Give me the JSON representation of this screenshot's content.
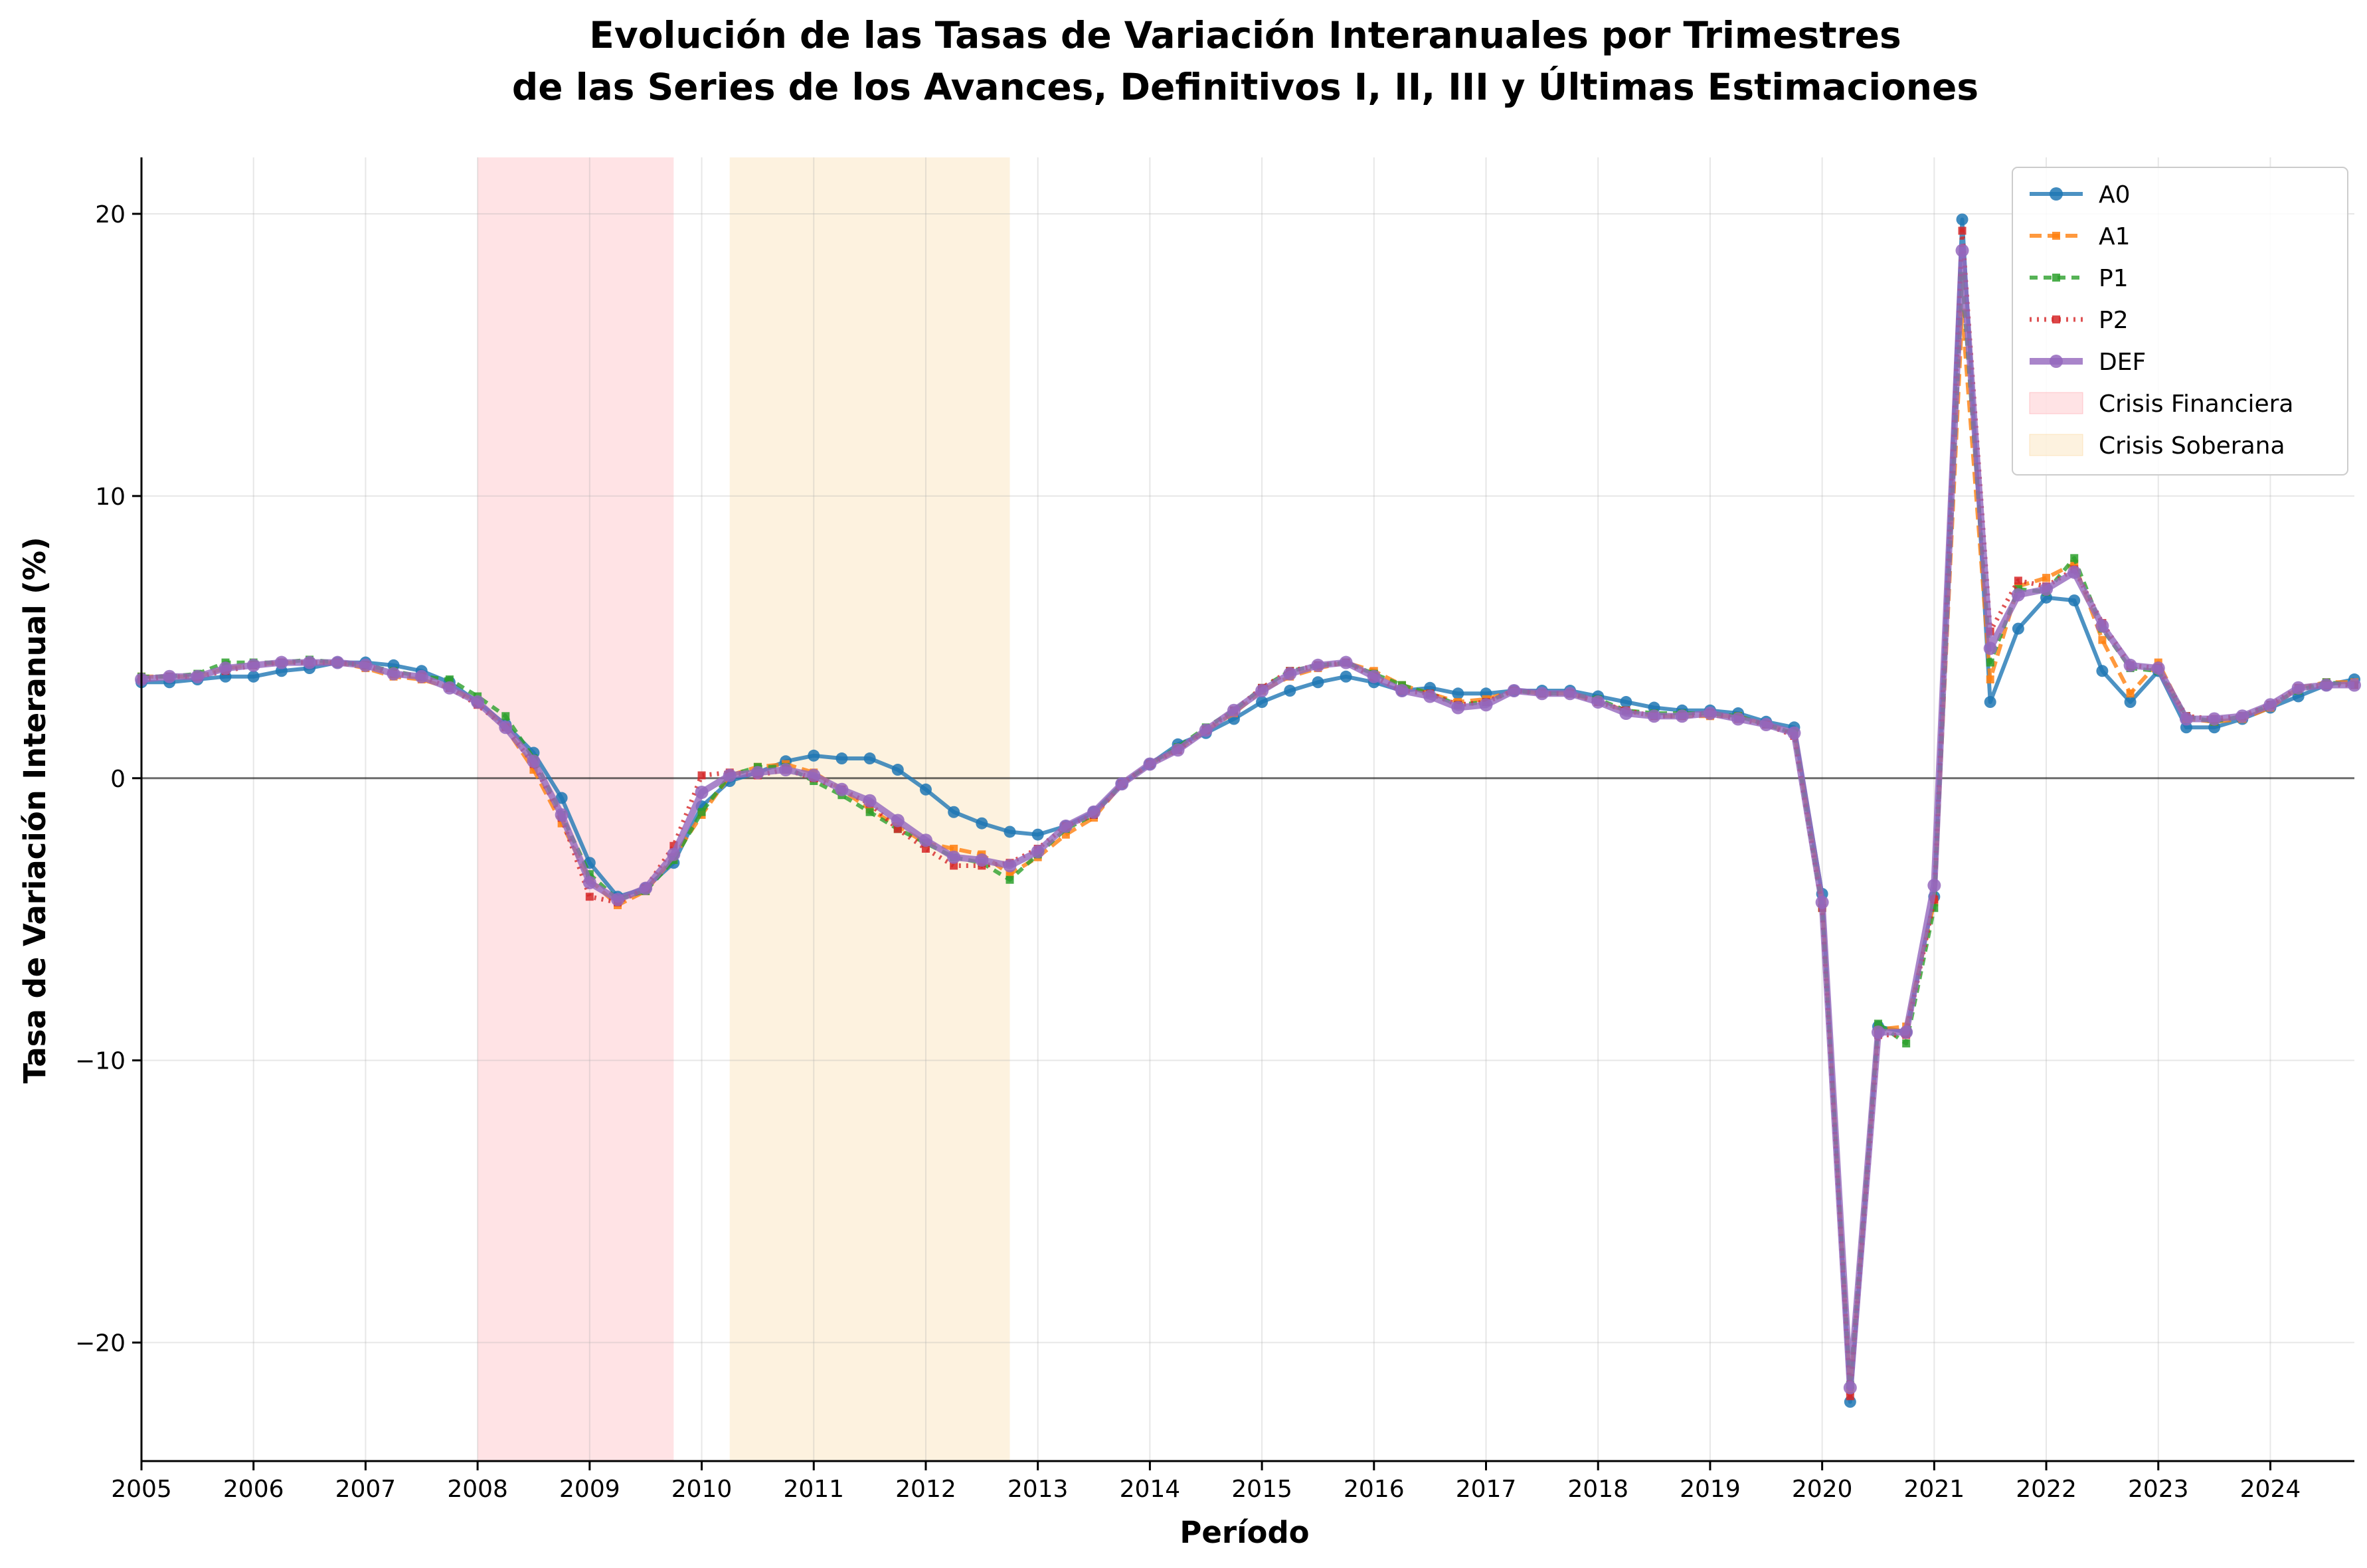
{
  "chart_data": {
    "type": "line",
    "title_lines": [
      "Evolución de las Tasas de Variación Interanuales por Trimestres",
      "de las Series de los Avances, Definitivos I, II, III y Últimas Estimaciones"
    ],
    "xlabel": "Período",
    "ylabel": "Tasa de Variación Interanual (%)",
    "xlim": [
      2005.0,
      2024.75
    ],
    "ylim": [
      -24.2,
      22
    ],
    "x_start": 2005.0,
    "x_step": 0.25,
    "x_ticks": [
      2005,
      2006,
      2007,
      2008,
      2009,
      2010,
      2011,
      2012,
      2013,
      2014,
      2015,
      2016,
      2017,
      2018,
      2019,
      2020,
      2021,
      2022,
      2023,
      2024
    ],
    "y_ticks": [
      -20,
      -10,
      0,
      10,
      20
    ],
    "grid": true,
    "zero_line": true,
    "legend_position": "upper right",
    "shaded_regions": [
      {
        "name": "Crisis Financiera",
        "x_start": 2008.0,
        "x_end": 2009.75,
        "color": "#ff9aa2",
        "opacity": 0.28
      },
      {
        "name": "Crisis Soberana",
        "x_start": 2010.25,
        "x_end": 2012.75,
        "color": "#f9d08b",
        "opacity": 0.28
      }
    ],
    "series": [
      {
        "name": "A0",
        "color": "#1f77b4",
        "dash": "",
        "marker": "circle",
        "width": 6,
        "values": [
          3.4,
          3.4,
          3.5,
          3.6,
          3.6,
          3.8,
          3.9,
          4.1,
          4.1,
          4.0,
          3.8,
          3.4,
          2.7,
          1.9,
          0.9,
          -0.7,
          -3.0,
          -4.2,
          -3.9,
          -3.0,
          -1.0,
          -0.1,
          0.2,
          0.6,
          0.8,
          0.7,
          0.7,
          0.3,
          -0.4,
          -1.2,
          -1.6,
          -1.9,
          -2.0,
          -1.7,
          -1.2,
          -0.2,
          0.5,
          1.2,
          1.6,
          2.1,
          2.7,
          3.1,
          3.4,
          3.6,
          3.4,
          3.1,
          3.2,
          3.0,
          3.0,
          3.1,
          3.1,
          3.1,
          2.9,
          2.7,
          2.5,
          2.4,
          2.4,
          2.3,
          2.0,
          1.8,
          -4.1,
          -22.1,
          -8.8,
          -9.0,
          -4.2,
          19.8,
          2.7,
          5.3,
          6.4,
          6.3,
          3.8,
          2.7,
          3.8,
          1.8,
          1.8,
          2.1,
          2.5,
          2.9,
          3.3,
          3.5
        ]
      },
      {
        "name": "A1",
        "color": "#ff7f0e",
        "dash": "18,9",
        "marker": "square",
        "width": 6,
        "values": [
          3.6,
          3.6,
          3.6,
          3.9,
          4.0,
          4.1,
          4.1,
          4.1,
          3.9,
          3.6,
          3.5,
          3.2,
          2.7,
          1.8,
          0.3,
          -1.6,
          -3.6,
          -4.5,
          -4.0,
          -2.8,
          -1.3,
          0.1,
          0.4,
          0.5,
          0.2,
          -0.4,
          -1.1,
          -1.7,
          -2.3,
          -2.5,
          -2.7,
          -3.4,
          -2.8,
          -2.0,
          -1.4,
          -0.2,
          0.5,
          1.0,
          1.7,
          2.3,
          3.1,
          3.6,
          3.9,
          4.1,
          3.8,
          3.3,
          3.0,
          2.7,
          2.8,
          3.1,
          3.0,
          3.0,
          2.7,
          2.4,
          2.2,
          2.2,
          2.2,
          2.2,
          1.9,
          1.6,
          -4.4,
          -21.7,
          -8.9,
          -8.8,
          -4.4,
          16.5,
          3.5,
          6.8,
          7.1,
          7.6,
          4.9,
          3.0,
          4.1,
          2.1,
          2.0,
          2.1,
          2.5,
          3.2,
          3.4,
          3.4
        ]
      },
      {
        "name": "P1",
        "color": "#2ca02c",
        "dash": "12,9",
        "marker": "square",
        "width": 6,
        "values": [
          3.6,
          3.6,
          3.7,
          4.1,
          4.1,
          4.1,
          4.2,
          4.1,
          4.0,
          3.8,
          3.6,
          3.5,
          2.9,
          2.2,
          0.7,
          -1.3,
          -3.4,
          -4.3,
          -4.0,
          -2.9,
          -1.2,
          0.1,
          0.4,
          0.4,
          -0.1,
          -0.6,
          -1.2,
          -1.8,
          -2.3,
          -2.8,
          -3.0,
          -3.6,
          -2.7,
          -1.8,
          -1.3,
          -0.2,
          0.5,
          1.1,
          1.8,
          2.4,
          3.2,
          3.8,
          4.0,
          4.1,
          3.7,
          3.3,
          3.0,
          2.6,
          2.7,
          3.1,
          3.0,
          3.0,
          2.8,
          2.4,
          2.3,
          2.3,
          2.3,
          2.2,
          1.9,
          1.6,
          -4.6,
          -21.5,
          -8.7,
          -9.4,
          -4.6,
          17.8,
          4.1,
          6.7,
          6.6,
          7.8,
          5.3,
          3.9,
          3.8,
          2.2,
          2.0,
          2.2,
          2.6,
          3.1,
          3.4,
          3.3
        ]
      },
      {
        "name": "P2",
        "color": "#d62728",
        "dash": "3,8",
        "marker": "square",
        "width": 7,
        "values": [
          3.5,
          3.6,
          3.6,
          3.8,
          4.0,
          4.1,
          4.1,
          4.1,
          4.0,
          3.7,
          3.6,
          3.2,
          2.6,
          1.8,
          0.5,
          -1.4,
          -4.2,
          -4.4,
          -3.9,
          -2.4,
          0.1,
          0.2,
          0.1,
          0.3,
          0.0,
          -0.4,
          -0.9,
          -1.8,
          -2.5,
          -3.1,
          -3.1,
          -3.0,
          -2.5,
          -1.7,
          -1.3,
          -0.2,
          0.5,
          1.0,
          1.7,
          2.4,
          3.2,
          3.8,
          4.0,
          4.1,
          3.6,
          3.1,
          3.0,
          2.6,
          2.7,
          3.1,
          3.0,
          3.0,
          2.7,
          2.4,
          2.2,
          2.2,
          2.3,
          2.1,
          1.9,
          1.5,
          -4.6,
          -21.9,
          -9.1,
          -9.1,
          -4.3,
          19.4,
          5.2,
          7.0,
          6.8,
          7.4,
          5.5,
          4.0,
          3.9,
          2.2,
          2.1,
          2.2,
          2.6,
          3.2,
          3.3,
          3.3
        ]
      },
      {
        "name": "DEF",
        "color": "#9467bd",
        "dash": "",
        "marker": "circle",
        "width": 10,
        "values": [
          3.5,
          3.6,
          3.6,
          3.9,
          4.0,
          4.1,
          4.1,
          4.1,
          4.0,
          3.7,
          3.6,
          3.2,
          2.7,
          1.8,
          0.6,
          -1.3,
          -3.7,
          -4.3,
          -3.9,
          -2.7,
          -0.5,
          0.1,
          0.2,
          0.3,
          0.1,
          -0.4,
          -0.8,
          -1.5,
          -2.2,
          -2.8,
          -2.9,
          -3.1,
          -2.6,
          -1.7,
          -1.2,
          -0.2,
          0.5,
          1.0,
          1.7,
          2.4,
          3.1,
          3.7,
          4.0,
          4.1,
          3.6,
          3.1,
          2.9,
          2.5,
          2.6,
          3.1,
          3.0,
          3.0,
          2.7,
          2.3,
          2.2,
          2.2,
          2.3,
          2.1,
          1.9,
          1.6,
          -4.4,
          -21.6,
          -9.0,
          -9.0,
          -3.8,
          18.7,
          4.6,
          6.5,
          6.7,
          7.3,
          5.4,
          4.0,
          3.9,
          2.1,
          2.1,
          2.2,
          2.6,
          3.2,
          3.3,
          3.3
        ]
      }
    ]
  }
}
